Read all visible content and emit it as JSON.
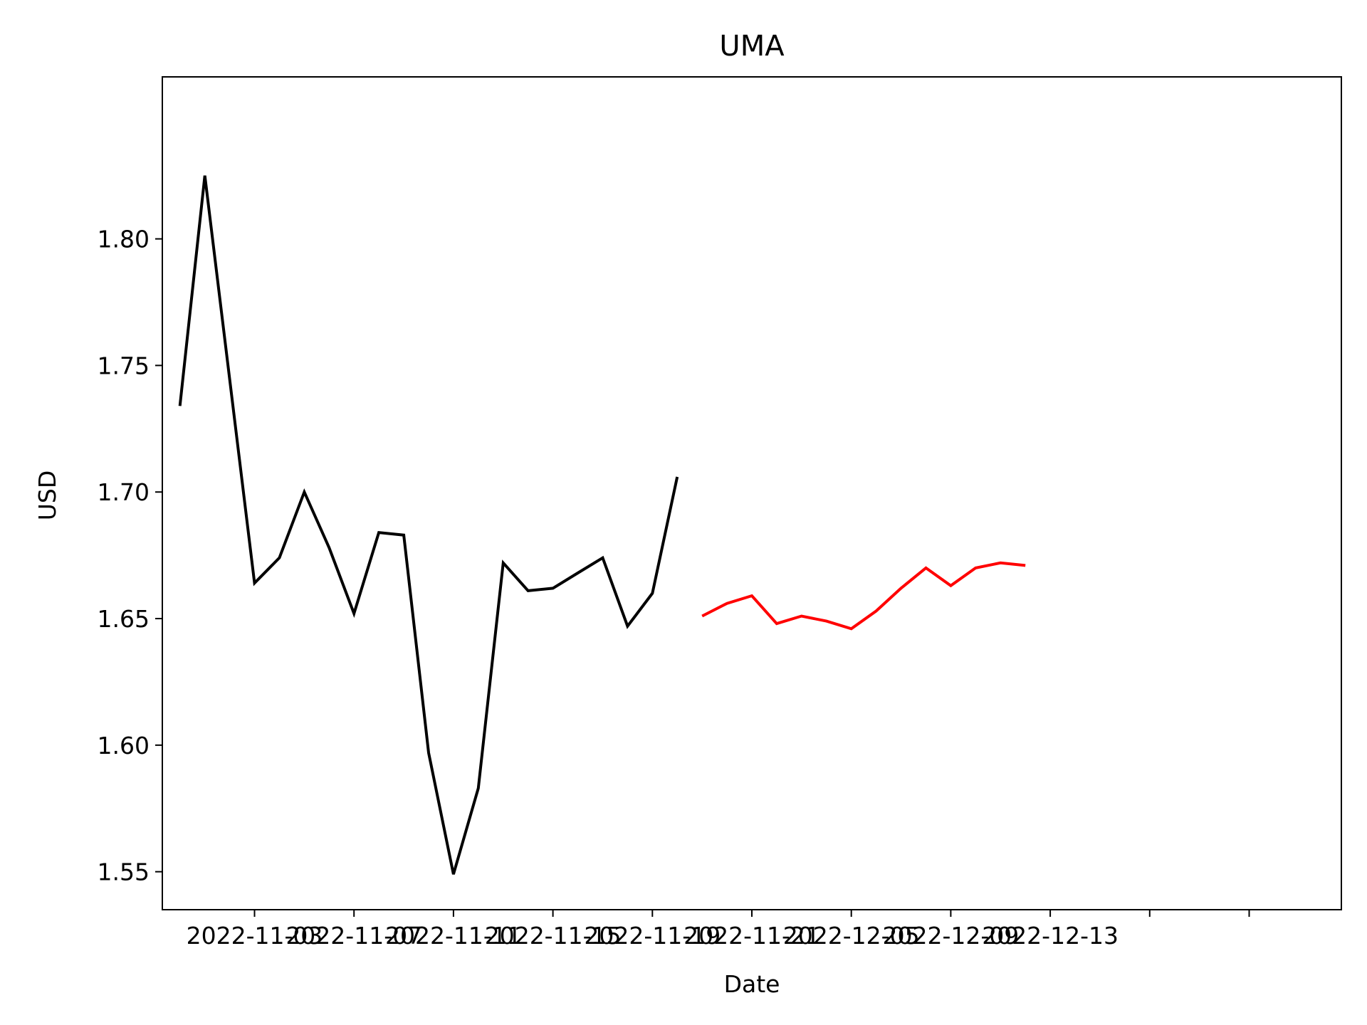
{
  "chart_data": {
    "type": "line",
    "title": "UMA",
    "xlabel": "Date",
    "ylabel": "USD",
    "ylim": [
      1.535,
      1.864
    ],
    "xlim": [
      "2022-10-30T07:00",
      "2022-12-16T17:00"
    ],
    "grid": false,
    "legend": "none",
    "x_ticks": [
      "2022-11-03",
      "2022-11-07",
      "2022-11-11",
      "2022-11-15",
      "2022-11-19",
      "2022-11-21",
      "2022-12-05",
      "2022-12-09",
      "2022-12-13"
    ],
    "y_ticks": [
      "1.55",
      "1.60",
      "1.65",
      "1.70",
      "1.75",
      "1.80"
    ],
    "series": [
      {
        "color": "#000000",
        "points": [
          {
            "x": "2022-10-31",
            "y": 1.734
          },
          {
            "x": "2022-11-01",
            "y": 1.825
          },
          {
            "x": "2022-11-03",
            "y": 1.664
          },
          {
            "x": "2022-11-04",
            "y": 1.674
          },
          {
            "x": "2022-11-05",
            "y": 1.7
          },
          {
            "x": "2022-11-06",
            "y": 1.678
          },
          {
            "x": "2022-11-07",
            "y": 1.652
          },
          {
            "x": "2022-11-08",
            "y": 1.684
          },
          {
            "x": "2022-11-09",
            "y": 1.683
          },
          {
            "x": "2022-11-10",
            "y": 1.597
          },
          {
            "x": "2022-11-11",
            "y": 1.549
          },
          {
            "x": "2022-11-12",
            "y": 1.583
          },
          {
            "x": "2022-11-13",
            "y": 1.672
          },
          {
            "x": "2022-11-14",
            "y": 1.661
          },
          {
            "x": "2022-11-15",
            "y": 1.662
          },
          {
            "x": "2022-11-16",
            "y": 1.668
          },
          {
            "x": "2022-11-17",
            "y": 1.674
          },
          {
            "x": "2022-11-18",
            "y": 1.647
          },
          {
            "x": "2022-11-19",
            "y": 1.66
          },
          {
            "x": "2022-11-20",
            "y": 1.706
          }
        ]
      },
      {
        "color": "#ff0000",
        "points": [
          {
            "x": "2022-11-21",
            "y": 1.651
          },
          {
            "x": "2022-11-22",
            "y": 1.656
          },
          {
            "x": "2022-11-23",
            "y": 1.659
          },
          {
            "x": "2022-11-24",
            "y": 1.648
          },
          {
            "x": "2022-11-25",
            "y": 1.651
          },
          {
            "x": "2022-11-26",
            "y": 1.649
          },
          {
            "x": "2022-11-27",
            "y": 1.646
          },
          {
            "x": "2022-11-28",
            "y": 1.653
          },
          {
            "x": "2022-11-29",
            "y": 1.662
          },
          {
            "x": "2022-11-30",
            "y": 1.67
          },
          {
            "x": "2022-12-01",
            "y": 1.663
          },
          {
            "x": "2022-12-02",
            "y": 1.67
          },
          {
            "x": "2022-12-03",
            "y": 1.672
          },
          {
            "x": "2022-12-04",
            "y": 1.671
          }
        ]
      }
    ]
  }
}
